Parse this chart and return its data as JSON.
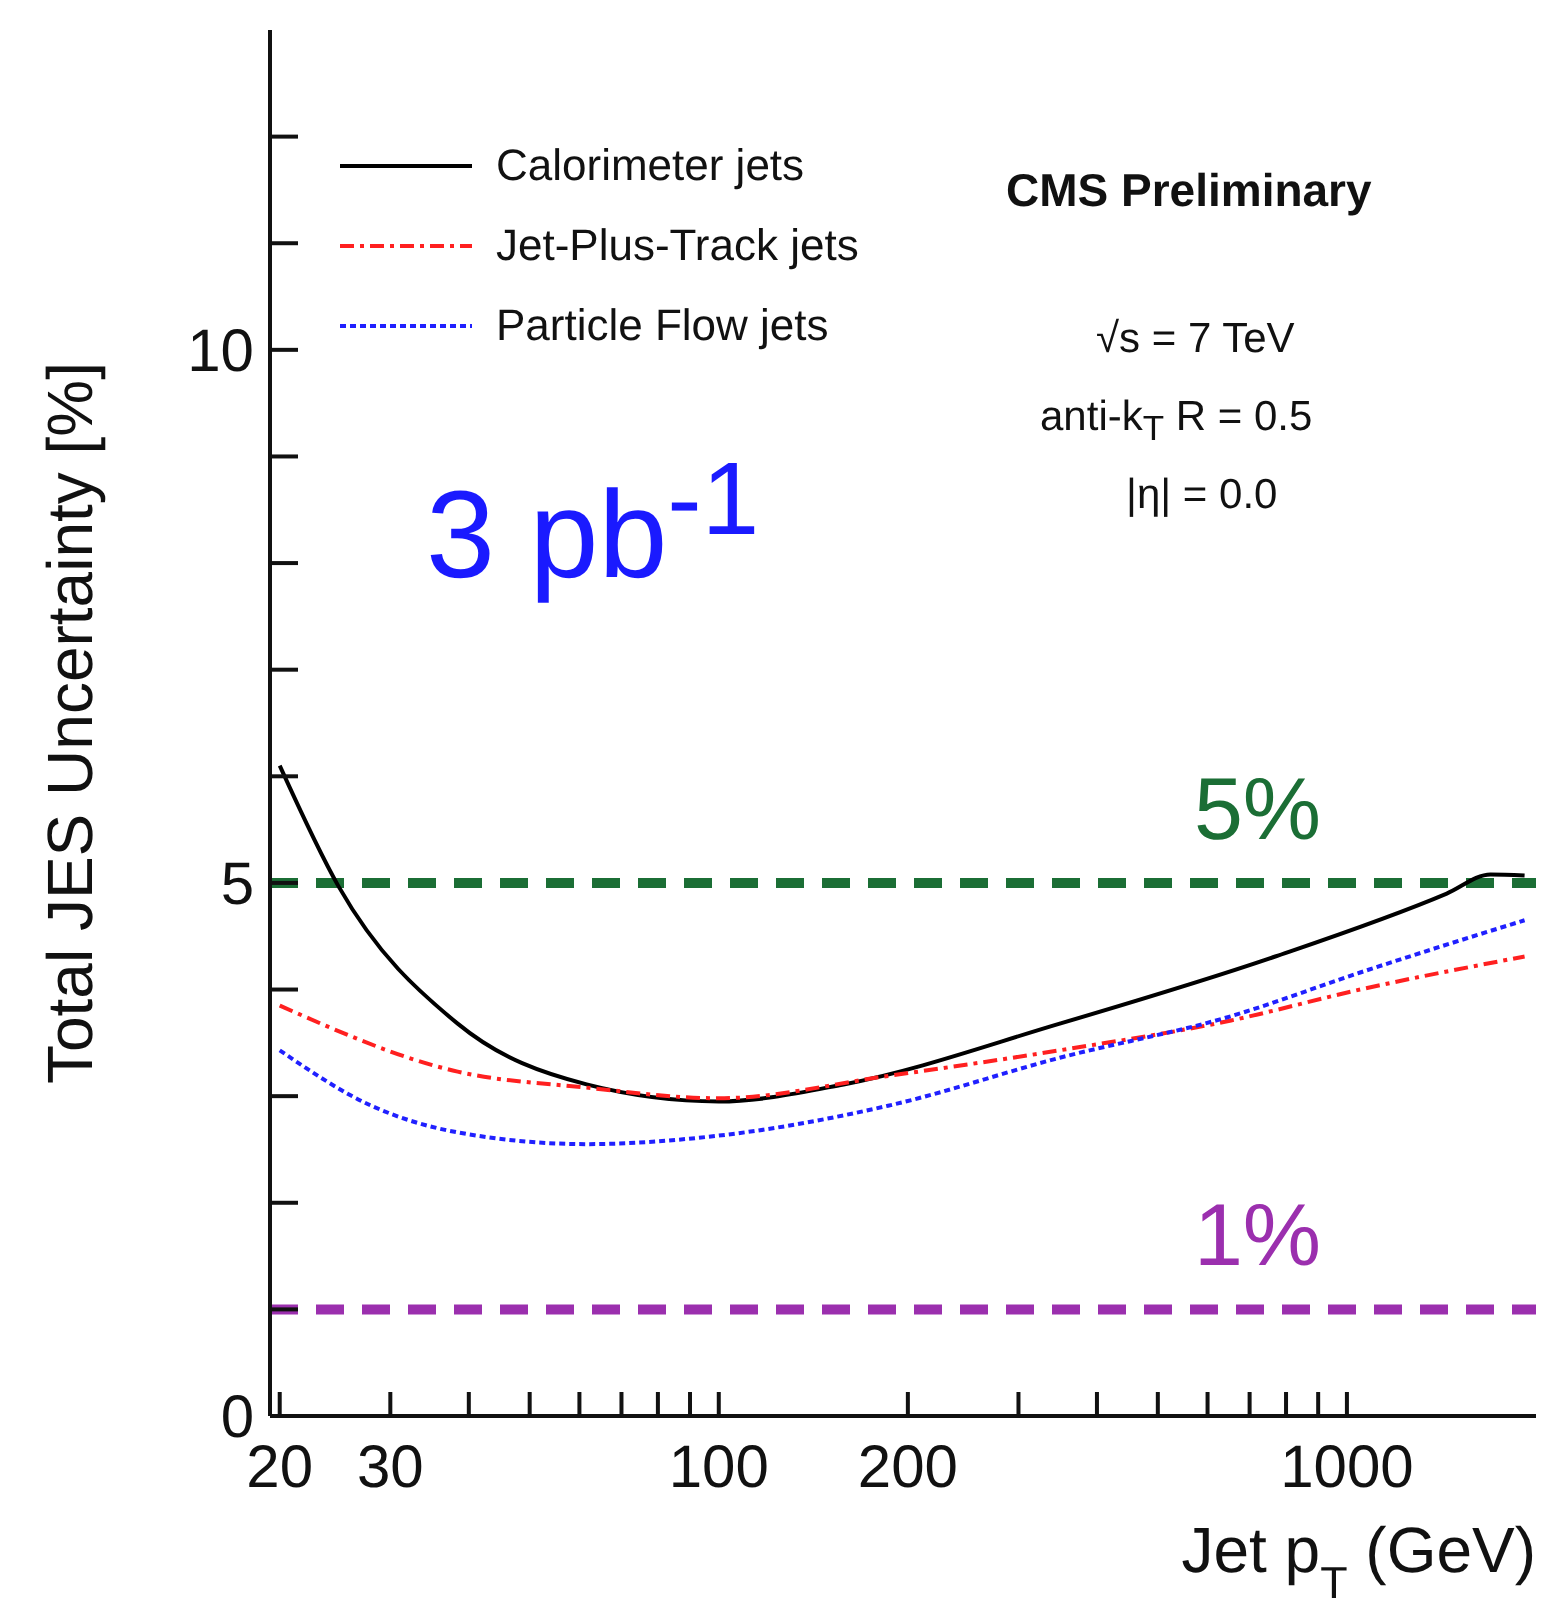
{
  "chart_data": {
    "type": "line",
    "xlabel": "Jet p$_{T}$ (GeV)",
    "ylabel": "Total JES Uncertainty [%]",
    "log": "x",
    "legend": "top left",
    "marker": "none",
    "xlim": [
      19.3,
      2000
    ],
    "ylim": [
      0,
      13
    ],
    "xticks": [
      20,
      30,
      {
        "value": 40,
        "label": null
      },
      {
        "value": 50,
        "label": null
      },
      {
        "value": 60,
        "label": null
      },
      {
        "value": 70,
        "label": null
      },
      {
        "value": 80,
        "label": null
      },
      {
        "value": 90,
        "label": null
      },
      100,
      200,
      {
        "value": 300,
        "label": null
      },
      {
        "value": 400,
        "label": null
      },
      {
        "value": 500,
        "label": null
      },
      {
        "value": 600,
        "label": null
      },
      {
        "value": 700,
        "label": null
      },
      {
        "value": 800,
        "label": null
      },
      {
        "value": 900,
        "label": null
      },
      1000
    ],
    "yticks": [
      0,
      {
        "value": 1,
        "label": null
      },
      {
        "value": 2,
        "label": null
      },
      {
        "value": 3,
        "label": null
      },
      {
        "value": 4,
        "label": null
      },
      5,
      {
        "value": 6,
        "label": null
      },
      {
        "value": 7,
        "label": null
      },
      {
        "value": 8,
        "label": null
      },
      {
        "value": 9,
        "label": null
      },
      10,
      {
        "value": 11,
        "label": null
      },
      {
        "value": 12,
        "label": null
      }
    ],
    "series": [
      {
        "name": "Calorimeter jets",
        "color": "#000000",
        "line_style": "solid",
        "x": [
          20,
          24.8,
          38.4,
          61.6,
          100,
          158,
          349,
          769,
          1442,
          1693,
          1918
        ],
        "values": [
          6.1,
          4.97,
          3.68,
          3.11,
          2.95,
          3.11,
          3.68,
          4.31,
          4.9,
          5.08,
          5.07
        ]
      },
      {
        "name": "Jet-Plus-Track jets",
        "color": "#ff2020",
        "line_style": "dashed",
        "x": [
          20,
          38.4,
          61.6,
          100,
          186,
          349,
          654,
          1050,
          1918
        ],
        "values": [
          3.85,
          3.23,
          3.08,
          2.98,
          3.19,
          3.43,
          3.71,
          4.0,
          4.31
        ]
      },
      {
        "name": "Particle Flow jets",
        "color": "#2020ff",
        "line_style": "dotted",
        "x": [
          20,
          28,
          38.4,
          61.6,
          100,
          186,
          349,
          654,
          1050,
          1918
        ],
        "values": [
          3.43,
          2.91,
          2.66,
          2.55,
          2.63,
          2.91,
          3.36,
          3.75,
          4.16,
          4.65
        ]
      }
    ],
    "ref_lines": [
      {
        "axis": "y",
        "value": 5,
        "label": "5%",
        "color": "#1b6e35",
        "line_style": "dashed"
      },
      {
        "axis": "y",
        "value": 1,
        "label": "1%",
        "color": "#9b2fae",
        "line_style": "dashed"
      }
    ],
    "annotations": [
      "CMS Preliminary",
      "√s = 7 TeV",
      "anti-k$_{T}$ R = 0.5",
      "|η| = 0.0",
      "3 pb$^{-1}$"
    ]
  }
}
